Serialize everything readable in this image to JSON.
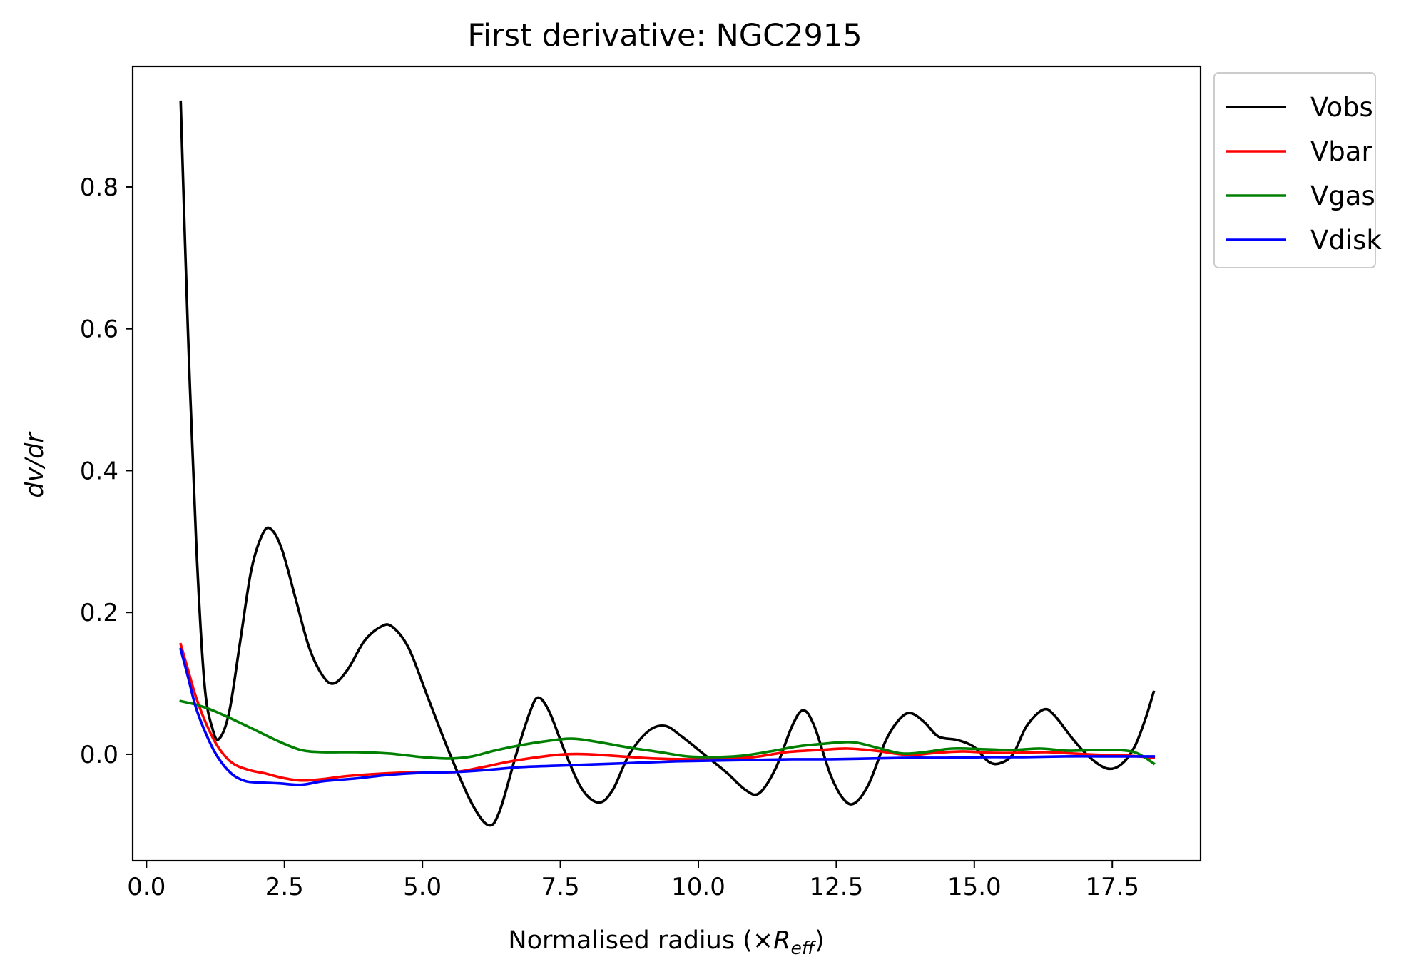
{
  "chart_data": {
    "type": "line",
    "title": "First derivative: NGC2915",
    "xlabel_prefix": "Normalised radius (×",
    "xlabel_symbol": "R",
    "xlabel_subscript": "eff",
    "xlabel_suffix": ")",
    "ylabel": "dv/dr",
    "xlim": [
      -0.25,
      19.1
    ],
    "ylim": [
      -0.15,
      0.97
    ],
    "xticks": [
      0.0,
      2.5,
      5.0,
      7.5,
      10.0,
      12.5,
      15.0,
      17.5
    ],
    "xtick_labels": [
      "0.0",
      "2.5",
      "5.0",
      "7.5",
      "10.0",
      "12.5",
      "15.0",
      "17.5"
    ],
    "yticks": [
      0.0,
      0.2,
      0.4,
      0.6,
      0.8
    ],
    "ytick_labels": [
      "0.0",
      "0.2",
      "0.4",
      "0.6",
      "0.8"
    ],
    "legend_position": "outside-top-right",
    "grid": false,
    "series": [
      {
        "name": "Vobs",
        "color": "#000000",
        "points": [
          [
            0.62,
            0.92
          ],
          [
            0.75,
            0.6
          ],
          [
            0.9,
            0.3
          ],
          [
            1.05,
            0.1
          ],
          [
            1.2,
            0.035
          ],
          [
            1.32,
            0.022
          ],
          [
            1.5,
            0.06
          ],
          [
            1.7,
            0.16
          ],
          [
            1.9,
            0.26
          ],
          [
            2.1,
            0.31
          ],
          [
            2.25,
            0.318
          ],
          [
            2.45,
            0.29
          ],
          [
            2.7,
            0.22
          ],
          [
            2.95,
            0.15
          ],
          [
            3.2,
            0.11
          ],
          [
            3.4,
            0.1
          ],
          [
            3.65,
            0.12
          ],
          [
            3.95,
            0.16
          ],
          [
            4.25,
            0.18
          ],
          [
            4.45,
            0.18
          ],
          [
            4.75,
            0.15
          ],
          [
            5.1,
            0.08
          ],
          [
            5.5,
            0.0
          ],
          [
            5.9,
            -0.07
          ],
          [
            6.2,
            -0.1
          ],
          [
            6.4,
            -0.08
          ],
          [
            6.7,
            0.0
          ],
          [
            6.95,
            0.06
          ],
          [
            7.1,
            0.08
          ],
          [
            7.3,
            0.06
          ],
          [
            7.6,
            0.0
          ],
          [
            7.9,
            -0.05
          ],
          [
            8.2,
            -0.068
          ],
          [
            8.45,
            -0.05
          ],
          [
            8.75,
            0.0
          ],
          [
            9.1,
            0.033
          ],
          [
            9.4,
            0.04
          ],
          [
            9.7,
            0.025
          ],
          [
            10.1,
            0.0
          ],
          [
            10.5,
            -0.025
          ],
          [
            10.85,
            -0.05
          ],
          [
            11.1,
            -0.055
          ],
          [
            11.4,
            -0.02
          ],
          [
            11.7,
            0.04
          ],
          [
            11.9,
            0.062
          ],
          [
            12.1,
            0.04
          ],
          [
            12.4,
            -0.03
          ],
          [
            12.65,
            -0.065
          ],
          [
            12.85,
            -0.068
          ],
          [
            13.1,
            -0.04
          ],
          [
            13.4,
            0.02
          ],
          [
            13.65,
            0.05
          ],
          [
            13.85,
            0.058
          ],
          [
            14.1,
            0.045
          ],
          [
            14.35,
            0.025
          ],
          [
            14.7,
            0.02
          ],
          [
            15.0,
            0.01
          ],
          [
            15.25,
            -0.01
          ],
          [
            15.45,
            -0.013
          ],
          [
            15.7,
            0.0
          ],
          [
            15.95,
            0.04
          ],
          [
            16.25,
            0.063
          ],
          [
            16.45,
            0.055
          ],
          [
            16.8,
            0.02
          ],
          [
            17.1,
            -0.005
          ],
          [
            17.4,
            -0.02
          ],
          [
            17.65,
            -0.015
          ],
          [
            17.9,
            0.01
          ],
          [
            18.1,
            0.05
          ],
          [
            18.25,
            0.088
          ]
        ]
      },
      {
        "name": "Vbar",
        "color": "#ff0000",
        "points": [
          [
            0.62,
            0.155
          ],
          [
            0.75,
            0.12
          ],
          [
            0.9,
            0.08
          ],
          [
            1.1,
            0.04
          ],
          [
            1.3,
            0.01
          ],
          [
            1.55,
            -0.012
          ],
          [
            1.85,
            -0.022
          ],
          [
            2.15,
            -0.027
          ],
          [
            2.45,
            -0.033
          ],
          [
            2.8,
            -0.037
          ],
          [
            3.2,
            -0.035
          ],
          [
            3.6,
            -0.031
          ],
          [
            4.1,
            -0.028
          ],
          [
            4.6,
            -0.026
          ],
          [
            5.1,
            -0.025
          ],
          [
            5.6,
            -0.025
          ],
          [
            6.1,
            -0.018
          ],
          [
            6.6,
            -0.01
          ],
          [
            7.2,
            -0.003
          ],
          [
            7.6,
            0.0
          ],
          [
            8.0,
            0.0
          ],
          [
            8.6,
            -0.003
          ],
          [
            9.2,
            -0.006
          ],
          [
            9.8,
            -0.007
          ],
          [
            10.4,
            -0.006
          ],
          [
            11.0,
            -0.004
          ],
          [
            11.6,
            0.003
          ],
          [
            12.2,
            0.006
          ],
          [
            12.7,
            0.008
          ],
          [
            13.2,
            0.005
          ],
          [
            13.8,
            -0.001
          ],
          [
            14.3,
            0.002
          ],
          [
            14.8,
            0.004
          ],
          [
            15.3,
            0.002
          ],
          [
            15.8,
            0.002
          ],
          [
            16.3,
            0.003
          ],
          [
            16.8,
            0.001
          ],
          [
            17.3,
            -0.001
          ],
          [
            17.8,
            -0.002
          ],
          [
            18.25,
            -0.005
          ]
        ]
      },
      {
        "name": "Vgas",
        "color": "#008000",
        "points": [
          [
            0.62,
            0.075
          ],
          [
            0.9,
            0.07
          ],
          [
            1.2,
            0.062
          ],
          [
            1.6,
            0.048
          ],
          [
            2.0,
            0.033
          ],
          [
            2.4,
            0.018
          ],
          [
            2.8,
            0.006
          ],
          [
            3.2,
            0.003
          ],
          [
            3.8,
            0.003
          ],
          [
            4.4,
            0.001
          ],
          [
            5.0,
            -0.004
          ],
          [
            5.5,
            -0.006
          ],
          [
            5.9,
            -0.003
          ],
          [
            6.3,
            0.005
          ],
          [
            6.8,
            0.013
          ],
          [
            7.2,
            0.018
          ],
          [
            7.7,
            0.022
          ],
          [
            8.2,
            0.017
          ],
          [
            8.7,
            0.01
          ],
          [
            9.3,
            0.003
          ],
          [
            9.8,
            -0.003
          ],
          [
            10.3,
            -0.004
          ],
          [
            10.8,
            -0.002
          ],
          [
            11.3,
            0.004
          ],
          [
            11.8,
            0.011
          ],
          [
            12.3,
            0.015
          ],
          [
            12.8,
            0.017
          ],
          [
            13.3,
            0.008
          ],
          [
            13.7,
            0.001
          ],
          [
            14.1,
            0.003
          ],
          [
            14.6,
            0.008
          ],
          [
            15.2,
            0.007
          ],
          [
            15.7,
            0.006
          ],
          [
            16.2,
            0.008
          ],
          [
            16.7,
            0.005
          ],
          [
            17.2,
            0.006
          ],
          [
            17.6,
            0.006
          ],
          [
            17.9,
            0.003
          ],
          [
            18.1,
            -0.005
          ],
          [
            18.25,
            -0.013
          ]
        ]
      },
      {
        "name": "Vdisk",
        "color": "#0000ff",
        "points": [
          [
            0.62,
            0.148
          ],
          [
            0.75,
            0.11
          ],
          [
            0.9,
            0.065
          ],
          [
            1.1,
            0.025
          ],
          [
            1.3,
            -0.005
          ],
          [
            1.55,
            -0.028
          ],
          [
            1.8,
            -0.038
          ],
          [
            2.1,
            -0.04
          ],
          [
            2.4,
            -0.041
          ],
          [
            2.8,
            -0.043
          ],
          [
            3.2,
            -0.038
          ],
          [
            3.8,
            -0.034
          ],
          [
            4.4,
            -0.029
          ],
          [
            5.0,
            -0.026
          ],
          [
            5.6,
            -0.025
          ],
          [
            6.2,
            -0.022
          ],
          [
            6.8,
            -0.018
          ],
          [
            7.5,
            -0.016
          ],
          [
            8.2,
            -0.014
          ],
          [
            8.9,
            -0.012
          ],
          [
            9.6,
            -0.01
          ],
          [
            10.3,
            -0.009
          ],
          [
            11.0,
            -0.008
          ],
          [
            11.7,
            -0.007
          ],
          [
            12.4,
            -0.007
          ],
          [
            13.1,
            -0.006
          ],
          [
            13.8,
            -0.005
          ],
          [
            14.5,
            -0.005
          ],
          [
            15.2,
            -0.004
          ],
          [
            15.9,
            -0.004
          ],
          [
            16.6,
            -0.003
          ],
          [
            17.3,
            -0.003
          ],
          [
            18.0,
            -0.003
          ],
          [
            18.25,
            -0.003
          ]
        ]
      }
    ]
  }
}
